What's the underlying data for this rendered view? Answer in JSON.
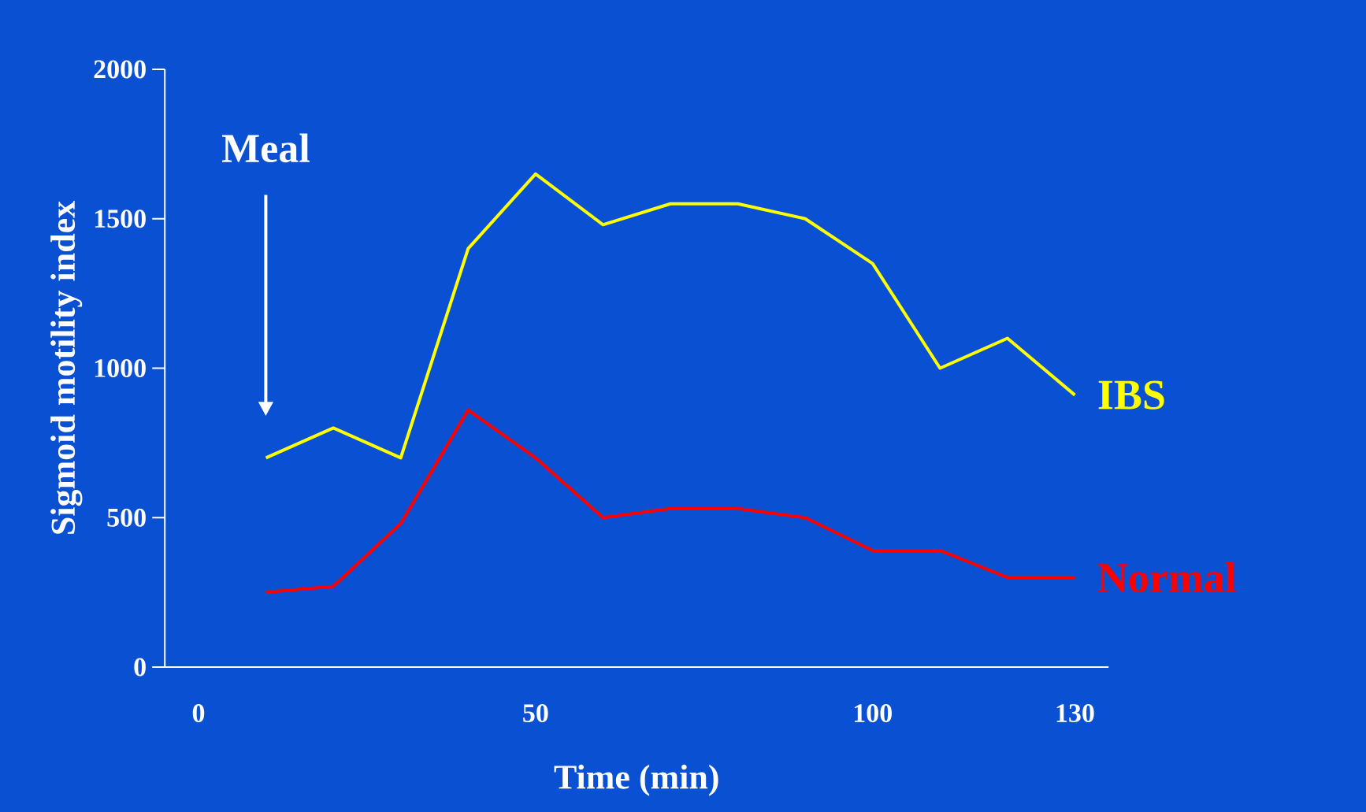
{
  "chart_data": {
    "type": "line",
    "xlabel": "Time (min)",
    "ylabel": "Sigmoid motility index",
    "categories": [
      "0",
      null,
      null,
      null,
      null,
      "50",
      null,
      null,
      null,
      null,
      "100",
      null,
      null,
      "130"
    ],
    "series": [
      {
        "name": "IBS",
        "color": "#ffff00",
        "values": [
          null,
          700,
          800,
          700,
          1400,
          1650,
          1480,
          1550,
          1550,
          1500,
          1350,
          1000,
          1100,
          910
        ]
      },
      {
        "name": "Normal",
        "color": "#ff0000",
        "values": [
          null,
          250,
          270,
          480,
          860,
          700,
          500,
          530,
          530,
          500,
          390,
          390,
          300,
          300
        ]
      }
    ],
    "ylim": [
      0,
      2000
    ],
    "yticks": [
      0,
      500,
      1000,
      1500,
      2000
    ],
    "annotations": [
      "Meal"
    ]
  }
}
